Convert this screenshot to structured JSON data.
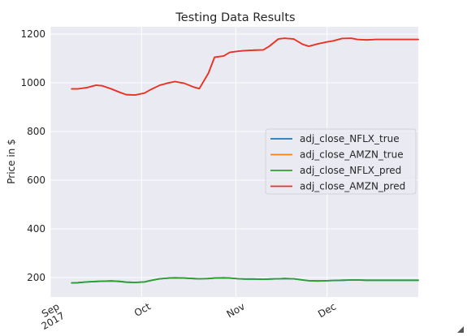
{
  "chart_data": {
    "type": "line",
    "title": "Testing Data Results",
    "xlabel": "",
    "ylabel": "Price in $",
    "xlim": [
      "2017-09-01",
      "2017-12-31"
    ],
    "ylim": [
      120,
      1230
    ],
    "grid": true,
    "legend_position": "center-right",
    "x_ticks": [
      {
        "date": "2017-09-01",
        "label": [
          "Sep",
          "2017"
        ]
      },
      {
        "date": "2017-10-01",
        "label": [
          "Oct"
        ]
      },
      {
        "date": "2017-11-01",
        "label": [
          "Nov"
        ]
      },
      {
        "date": "2017-12-01",
        "label": [
          "Dec"
        ]
      }
    ],
    "y_ticks": [
      200,
      400,
      600,
      800,
      1000,
      1200
    ],
    "x": [
      "2017-09-08",
      "2017-09-10",
      "2017-09-13",
      "2017-09-16",
      "2017-09-18",
      "2017-09-21",
      "2017-09-24",
      "2017-09-26",
      "2017-09-29",
      "2017-10-02",
      "2017-10-04",
      "2017-10-07",
      "2017-10-10",
      "2017-10-12",
      "2017-10-15",
      "2017-10-18",
      "2017-10-20",
      "2017-10-23",
      "2017-10-25",
      "2017-10-28",
      "2017-10-30",
      "2017-11-02",
      "2017-11-04",
      "2017-11-07",
      "2017-11-10",
      "2017-11-12",
      "2017-11-15",
      "2017-11-17",
      "2017-11-20",
      "2017-11-23",
      "2017-11-25",
      "2017-11-28",
      "2017-12-01",
      "2017-12-03",
      "2017-12-06",
      "2017-12-09",
      "2017-12-11",
      "2017-12-14",
      "2017-12-17",
      "2017-12-19",
      "2017-12-22",
      "2017-12-24",
      "2017-12-27",
      "2017-12-31"
    ],
    "series": [
      {
        "name": "adj_close_NFLX_true",
        "color": "#1f77b4",
        "values": [
          178,
          179,
          182,
          184,
          185,
          186,
          184,
          181,
          180,
          182,
          188,
          195,
          198,
          199,
          198,
          196,
          195,
          196,
          198,
          199,
          198,
          195,
          194,
          194,
          193,
          194,
          195,
          196,
          195,
          190,
          187,
          186,
          187,
          188,
          189,
          190,
          190,
          189,
          189,
          189,
          189,
          189,
          189,
          189
        ]
      },
      {
        "name": "adj_close_AMZN_true",
        "color": "#ff7f0e",
        "values": [
          975,
          975,
          980,
          990,
          988,
          975,
          960,
          951,
          950,
          958,
          972,
          990,
          1000,
          1005,
          998,
          983,
          976,
          1040,
          1105,
          1110,
          1125,
          1130,
          1132,
          1134,
          1135,
          1150,
          1180,
          1183,
          1180,
          1158,
          1150,
          1160,
          1168,
          1172,
          1182,
          1183,
          1178,
          1176,
          1178,
          1178,
          1178,
          1178,
          1178,
          1178
        ]
      },
      {
        "name": "adj_close_NFLX_pred",
        "color": "#2ca02c",
        "values": [
          178,
          179,
          182,
          184,
          185,
          186,
          184,
          181,
          180,
          182,
          188,
          195,
          198,
          199,
          198,
          196,
          195,
          196,
          198,
          199,
          198,
          195,
          194,
          194,
          193,
          194,
          195,
          196,
          195,
          190,
          187,
          186,
          187,
          188,
          189,
          190,
          190,
          189,
          189,
          189,
          189,
          189,
          189,
          189
        ]
      },
      {
        "name": "adj_close_AMZN_pred",
        "color": "#e8312a",
        "values": [
          975,
          975,
          980,
          990,
          988,
          975,
          960,
          951,
          950,
          958,
          972,
          990,
          1000,
          1005,
          998,
          983,
          976,
          1040,
          1105,
          1110,
          1125,
          1130,
          1132,
          1134,
          1135,
          1150,
          1180,
          1183,
          1180,
          1158,
          1150,
          1160,
          1168,
          1172,
          1182,
          1183,
          1178,
          1176,
          1178,
          1178,
          1178,
          1178,
          1178,
          1178
        ]
      }
    ]
  }
}
